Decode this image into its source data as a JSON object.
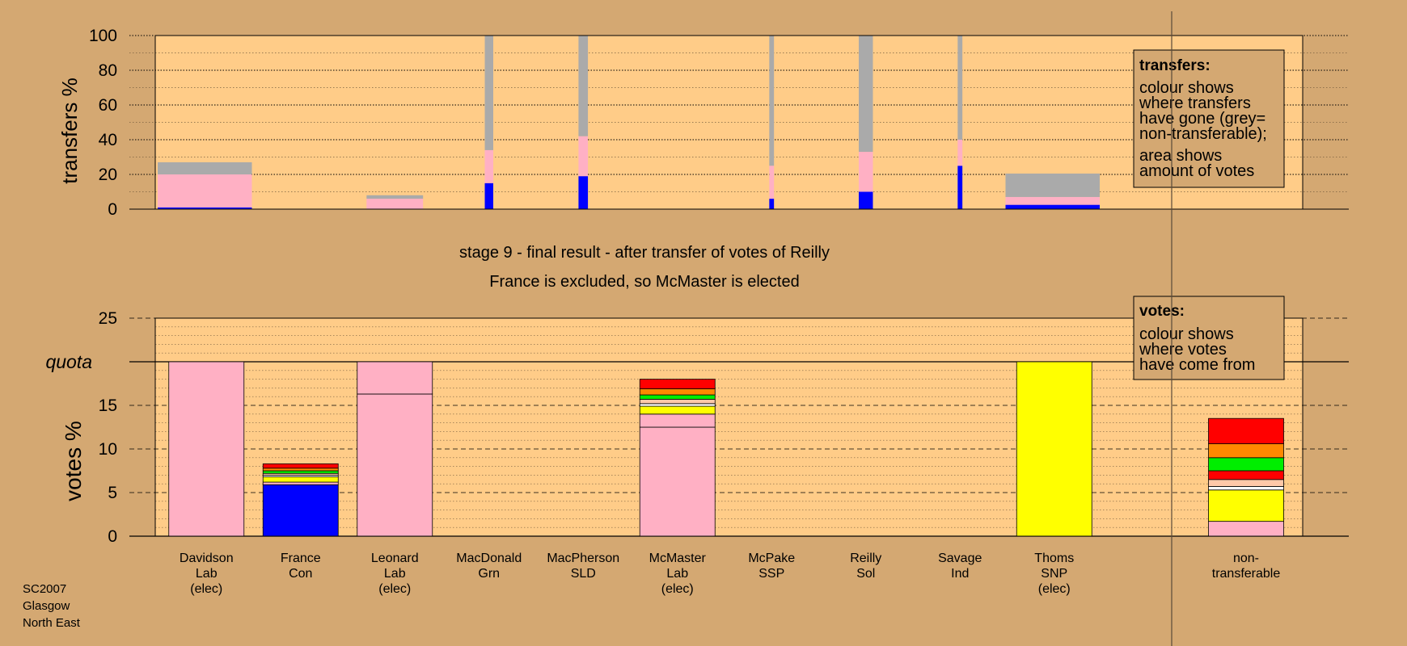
{
  "colors": {
    "page_bg": "#d4a872",
    "plot_bg": "#ffcc88",
    "Lab": "#ffb0c4",
    "Con": "#0000ff",
    "SNP": "#ffff00",
    "Grn": "#00ee00",
    "SSP": "#ff0000",
    "Sol": "#ff8800",
    "SLD": "#ffc8a8",
    "Ind": "#ffffff",
    "non_transferable": "#aaaaaa"
  },
  "corner_label": [
    "SC2007",
    "Glasgow",
    "North East"
  ],
  "chart_data": [
    {
      "type": "bar",
      "ylabel": "transfers %",
      "ylim": [
        0,
        100
      ],
      "yticks": [
        0,
        20,
        40,
        60,
        80,
        100
      ],
      "legend": {
        "title": "transfers:",
        "lines_1": [
          "colour shows",
          "where transfers",
          "have gone (grey=",
          "non-transferable);"
        ],
        "lines_2": [
          "area shows",
          "amount of votes"
        ]
      },
      "bars": [
        {
          "candidate": "Davidson",
          "width": 1.0,
          "stack": [
            {
              "party": "Con",
              "value": 1
            },
            {
              "party": "Lab",
              "value": 19
            },
            {
              "party": "non_transferable",
              "value": 7
            }
          ]
        },
        {
          "candidate": "Leonard",
          "width": 0.6,
          "stack": [
            {
              "party": "Lab",
              "value": 6
            },
            {
              "party": "non_transferable",
              "value": 2
            }
          ]
        },
        {
          "candidate": "MacDonald",
          "width": 0.09,
          "stack": [
            {
              "party": "Con",
              "value": 15
            },
            {
              "party": "Lab",
              "value": 19
            },
            {
              "party": "non_transferable",
              "value": 66
            }
          ]
        },
        {
          "candidate": "MacPherson",
          "width": 0.1,
          "stack": [
            {
              "party": "Con",
              "value": 19
            },
            {
              "party": "Lab",
              "value": 23
            },
            {
              "party": "non_transferable",
              "value": 58
            }
          ]
        },
        {
          "candidate": "McPake",
          "width": 0.05,
          "stack": [
            {
              "party": "Con",
              "value": 6
            },
            {
              "party": "Lab",
              "value": 19
            },
            {
              "party": "non_transferable",
              "value": 75
            }
          ]
        },
        {
          "candidate": "Reilly",
          "width": 0.15,
          "stack": [
            {
              "party": "Con",
              "value": 10
            },
            {
              "party": "Lab",
              "value": 23
            },
            {
              "party": "non_transferable",
              "value": 67
            }
          ]
        },
        {
          "candidate": "Savage",
          "width": 0.05,
          "stack": [
            {
              "party": "Con",
              "value": 25
            },
            {
              "party": "Lab",
              "value": 15
            },
            {
              "party": "non_transferable",
              "value": 60
            }
          ]
        },
        {
          "candidate": "Thoms",
          "width": 1.0,
          "stack": [
            {
              "party": "Con",
              "value": 2.5
            },
            {
              "party": "Lab",
              "value": 4.5
            },
            {
              "party": "non_transferable",
              "value": 13.5
            }
          ]
        }
      ]
    },
    {
      "type": "bar",
      "title": "stage 9 - final result - after transfer of votes of Reilly",
      "subtitle": "France is excluded, so McMaster is elected",
      "ylabel": "votes %",
      "ylim": [
        0,
        25
      ],
      "yticks": [
        0,
        5,
        10,
        15,
        20,
        25
      ],
      "quota": 20,
      "quota_label": "quota",
      "legend": {
        "title": "votes:",
        "lines": [
          "colour shows",
          "where votes",
          "have come from"
        ]
      },
      "categories": [
        {
          "lines": [
            "Davidson",
            "Lab",
            "(elec)"
          ]
        },
        {
          "lines": [
            "France",
            "Con"
          ]
        },
        {
          "lines": [
            "Leonard",
            "Lab",
            "(elec)"
          ]
        },
        {
          "lines": [
            "MacDonald",
            "Grn"
          ]
        },
        {
          "lines": [
            "MacPherson",
            "SLD"
          ]
        },
        {
          "lines": [
            "McMaster",
            "Lab",
            "(elec)"
          ]
        },
        {
          "lines": [
            "McPake",
            "SSP"
          ]
        },
        {
          "lines": [
            "Reilly",
            "Sol"
          ]
        },
        {
          "lines": [
            "Savage",
            "Ind"
          ]
        },
        {
          "lines": [
            "Thoms",
            "SNP",
            "(elec)"
          ]
        },
        {
          "lines": [
            "non-",
            "transferable"
          ]
        }
      ],
      "stacks": [
        [
          {
            "party": "Lab",
            "value": 20
          }
        ],
        [
          {
            "party": "Con",
            "value": 5.9
          },
          {
            "party": "Lab",
            "value": 0.3
          },
          {
            "party": "SNP",
            "value": 0.6
          },
          {
            "party": "Ind",
            "value": 0.2
          },
          {
            "party": "SLD",
            "value": 0.2
          },
          {
            "party": "Grn",
            "value": 0.3
          },
          {
            "party": "Sol",
            "value": 0.3
          },
          {
            "party": "SSP",
            "value": 0.5
          }
        ],
        [
          {
            "party": "Lab",
            "value": 16.3
          },
          {
            "party": "Lab",
            "value": 3.7
          }
        ],
        [],
        [],
        [
          {
            "party": "Lab",
            "value": 12.5
          },
          {
            "party": "Lab",
            "value": 1.5
          },
          {
            "party": "SNP",
            "value": 0.9
          },
          {
            "party": "Ind",
            "value": 0.3
          },
          {
            "party": "SLD",
            "value": 0.5
          },
          {
            "party": "Grn",
            "value": 0.5
          },
          {
            "party": "Sol",
            "value": 0.7
          },
          {
            "party": "SSP",
            "value": 1.1
          }
        ],
        [],
        [],
        [],
        [
          {
            "party": "SNP",
            "value": 20
          }
        ],
        [
          {
            "party": "Lab",
            "value": 1.7
          },
          {
            "party": "SNP",
            "value": 3.6
          },
          {
            "party": "Ind",
            "value": 0.4
          },
          {
            "party": "SLD",
            "value": 0.8
          },
          {
            "party": "SSP",
            "value": 1
          },
          {
            "party": "Grn",
            "value": 1.5
          },
          {
            "party": "Sol",
            "value": 1.6
          },
          {
            "party": "SSP",
            "value": 2.9
          }
        ]
      ]
    }
  ]
}
